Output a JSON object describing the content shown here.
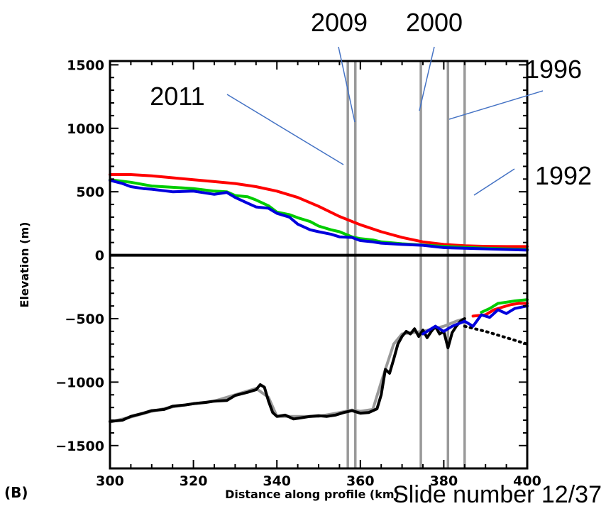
{
  "chart_data": {
    "type": "line",
    "panel_label": "(B)",
    "xlabel": "Distance along profile (km)",
    "ylabel": "Elevation (m)",
    "xlim": [
      300,
      400
    ],
    "ylim": [
      -1680,
      1530
    ],
    "x_ticks": [
      300,
      320,
      340,
      360,
      380,
      400
    ],
    "y_ticks": [
      1500,
      1000,
      500,
      0,
      -500,
      -1000,
      -1500
    ],
    "x_tick_labels": [
      "300",
      "320",
      "340",
      "360",
      "380",
      "400"
    ],
    "y_tick_labels": [
      "1500",
      "1000",
      "500",
      "0",
      "−500",
      "−1000",
      "−1500"
    ],
    "series": [
      {
        "color": "#ff0000",
        "values": [
          [
            300,
            635
          ],
          [
            305,
            635
          ],
          [
            310,
            625
          ],
          [
            315,
            610
          ],
          [
            320,
            595
          ],
          [
            325,
            580
          ],
          [
            330,
            565
          ],
          [
            335,
            540
          ],
          [
            340,
            505
          ],
          [
            345,
            455
          ],
          [
            350,
            385
          ],
          [
            355,
            305
          ],
          [
            360,
            240
          ],
          [
            365,
            185
          ],
          [
            370,
            140
          ],
          [
            375,
            105
          ],
          [
            380,
            85
          ],
          [
            385,
            75
          ],
          [
            390,
            70
          ],
          [
            395,
            68
          ],
          [
            400,
            68
          ]
        ]
      },
      {
        "color": "#00cc00",
        "values": [
          [
            300,
            595
          ],
          [
            305,
            575
          ],
          [
            310,
            545
          ],
          [
            315,
            535
          ],
          [
            320,
            525
          ],
          [
            325,
            505
          ],
          [
            328,
            500
          ],
          [
            330,
            470
          ],
          [
            333,
            460
          ],
          [
            335,
            435
          ],
          [
            338,
            390
          ],
          [
            340,
            340
          ],
          [
            343,
            320
          ],
          [
            345,
            295
          ],
          [
            348,
            265
          ],
          [
            350,
            230
          ],
          [
            353,
            200
          ],
          [
            355,
            185
          ],
          [
            358,
            145
          ],
          [
            360,
            130
          ],
          [
            363,
            120
          ],
          [
            365,
            105
          ],
          [
            370,
            90
          ],
          [
            375,
            80
          ],
          [
            380,
            70
          ],
          [
            385,
            62
          ],
          [
            390,
            55
          ],
          [
            395,
            50
          ],
          [
            400,
            45
          ]
        ]
      },
      {
        "color": "#0000dd",
        "values": [
          [
            300,
            590
          ],
          [
            303,
            565
          ],
          [
            305,
            540
          ],
          [
            308,
            525
          ],
          [
            310,
            520
          ],
          [
            315,
            500
          ],
          [
            320,
            505
          ],
          [
            325,
            480
          ],
          [
            328,
            495
          ],
          [
            330,
            455
          ],
          [
            333,
            410
          ],
          [
            335,
            380
          ],
          [
            338,
            370
          ],
          [
            340,
            330
          ],
          [
            343,
            300
          ],
          [
            345,
            245
          ],
          [
            348,
            200
          ],
          [
            350,
            185
          ],
          [
            353,
            165
          ],
          [
            355,
            145
          ],
          [
            358,
            140
          ],
          [
            360,
            115
          ],
          [
            363,
            105
          ],
          [
            365,
            95
          ],
          [
            370,
            85
          ],
          [
            375,
            78
          ],
          [
            380,
            60
          ],
          [
            385,
            55
          ],
          [
            390,
            50
          ],
          [
            395,
            45
          ],
          [
            400,
            40
          ]
        ]
      },
      {
        "color": "#999999",
        "values": [
          [
            300,
            -1315
          ],
          [
            305,
            -1275
          ],
          [
            310,
            -1230
          ],
          [
            315,
            -1195
          ],
          [
            320,
            -1170
          ],
          [
            325,
            -1150
          ],
          [
            330,
            -1100
          ],
          [
            335,
            -1050
          ],
          [
            338,
            -1120
          ],
          [
            340,
            -1270
          ],
          [
            345,
            -1270
          ],
          [
            350,
            -1270
          ],
          [
            355,
            -1240
          ],
          [
            358,
            -1220
          ],
          [
            360,
            -1230
          ],
          [
            363,
            -1215
          ],
          [
            365,
            -1000
          ],
          [
            368,
            -700
          ],
          [
            370,
            -620
          ],
          [
            375,
            -600
          ],
          [
            380,
            -560
          ],
          [
            383,
            -520
          ],
          [
            385,
            -500
          ]
        ]
      },
      {
        "color": "#000000",
        "values": [
          [
            300,
            -1310
          ],
          [
            303,
            -1300
          ],
          [
            305,
            -1270
          ],
          [
            308,
            -1245
          ],
          [
            310,
            -1225
          ],
          [
            313,
            -1215
          ],
          [
            315,
            -1190
          ],
          [
            318,
            -1180
          ],
          [
            320,
            -1170
          ],
          [
            323,
            -1160
          ],
          [
            325,
            -1150
          ],
          [
            328,
            -1145
          ],
          [
            330,
            -1105
          ],
          [
            333,
            -1080
          ],
          [
            335,
            -1060
          ],
          [
            336,
            -1020
          ],
          [
            337,
            -1040
          ],
          [
            338,
            -1150
          ],
          [
            339,
            -1240
          ],
          [
            340,
            -1270
          ],
          [
            342,
            -1260
          ],
          [
            344,
            -1290
          ],
          [
            346,
            -1280
          ],
          [
            348,
            -1270
          ],
          [
            350,
            -1265
          ],
          [
            352,
            -1270
          ],
          [
            354,
            -1260
          ],
          [
            356,
            -1240
          ],
          [
            358,
            -1225
          ],
          [
            360,
            -1245
          ],
          [
            362,
            -1240
          ],
          [
            364,
            -1210
          ],
          [
            365,
            -1100
          ],
          [
            366,
            -900
          ],
          [
            367,
            -930
          ],
          [
            368,
            -820
          ],
          [
            369,
            -700
          ],
          [
            370,
            -640
          ],
          [
            371,
            -600
          ],
          [
            372,
            -620
          ],
          [
            373,
            -580
          ],
          [
            374,
            -640
          ],
          [
            375,
            -590
          ],
          [
            376,
            -650
          ],
          [
            377,
            -600
          ],
          [
            378,
            -560
          ],
          [
            379,
            -620
          ],
          [
            380,
            -600
          ],
          [
            381,
            -730
          ],
          [
            382,
            -610
          ],
          [
            383,
            -560
          ],
          [
            384,
            -520
          ],
          [
            385,
            -500
          ]
        ]
      },
      {
        "color": "#000000",
        "dashed": true,
        "values": [
          [
            385,
            -560
          ],
          [
            390,
            -600
          ],
          [
            395,
            -650
          ],
          [
            400,
            -700
          ]
        ]
      },
      {
        "color": "#00cc00",
        "values": [
          [
            389,
            -450
          ],
          [
            391,
            -420
          ],
          [
            393,
            -380
          ],
          [
            395,
            -370
          ],
          [
            397,
            -360
          ],
          [
            400,
            -350
          ]
        ]
      },
      {
        "color": "#ff0000",
        "values": [
          [
            387,
            -480
          ],
          [
            390,
            -470
          ],
          [
            392,
            -430
          ],
          [
            394,
            -410
          ],
          [
            396,
            -390
          ],
          [
            398,
            -380
          ],
          [
            400,
            -380
          ]
        ]
      },
      {
        "color": "#0000dd",
        "values": [
          [
            375,
            -620
          ],
          [
            378,
            -560
          ],
          [
            380,
            -600
          ],
          [
            382,
            -560
          ],
          [
            385,
            -520
          ],
          [
            387,
            -560
          ],
          [
            389,
            -470
          ],
          [
            391,
            -490
          ],
          [
            393,
            -430
          ],
          [
            395,
            -460
          ],
          [
            397,
            -420
          ],
          [
            400,
            -400
          ]
        ]
      }
    ],
    "vertical_lines": {
      "color": "#999999",
      "x": [
        357,
        358.8,
        374.5,
        381,
        385
      ]
    },
    "annotations": [
      {
        "text": "2009",
        "line_to_x": 358.8
      },
      {
        "text": "2000",
        "line_to_x": 374.5
      },
      {
        "text": "1996",
        "line_to_x": 381
      },
      {
        "text": "2011",
        "line_to_x": 357
      },
      {
        "text": "1992",
        "line_to_x": 385
      }
    ]
  },
  "footer": {
    "slide_number": "Slide number 12/37"
  }
}
